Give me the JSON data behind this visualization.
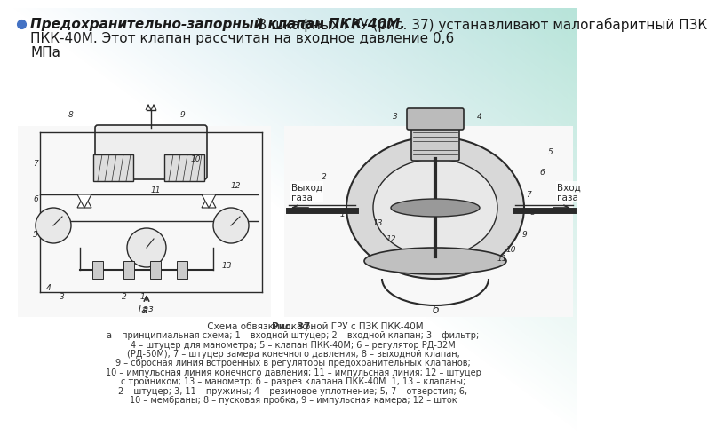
{
  "title_bold_italic": "Предохранительно-запорный клапан ПКК-40М.",
  "title_rest_line1": " В шкафных ГРУ (рис. 37) устанавливают малогабаритный ПЗК",
  "title_line2": "ПКК-40М. Этот клапан рассчитан на входное давление 0,6",
  "title_line3": "МПа",
  "cap1_bold": "Рис. 37.",
  "cap1_normal": " Схема обвязки шкафной ГРУ с ПЗК ПКК-40М",
  "cap2": "а – принципиальная схема; 1 – входной штуцер; 2 – входной клапан; 3 – фильтр;",
  "cap3": "4 – штуцер для манометра; 5 – клапан ПКК-40М; 6 – регулятор РД-32М",
  "cap4": "(РД-50М); 7 – штуцер замера конечного давления; 8 – выходной клапан;",
  "cap5": "9 – сбросная линия встроенных в регуляторы предохранительных клапанов;",
  "cap6": "10 – импульсная линия конечного давления; 11 – импульсная линия; 12 – штуцер",
  "cap7": "с тройником; 13 – манометр; б – разрез клапана ПКК-40М. 1, 13 – клапаны;",
  "cap8": "2 – штуцер; 3, 11 – пружины; 4 – резиновое уплотнение; 5, 7 – отверстия; 6,",
  "cap9": "10 – мембраны; 8 – пусковая пробка, 9 – импульсная камера; 12 – шток",
  "vyhod_gaza": "Выход\nгаза",
  "vhod_gaza": "Вход\nгаза",
  "gaz_label": "Газ",
  "label_a": "а",
  "label_b": "б",
  "bg_color": "#f5f5f5",
  "header_grad_left": "#6ab0d8",
  "header_grad_right": "#7ecfbb",
  "text_dark": "#1a1a1a",
  "bullet_color": "#4472c4",
  "caption_color": "#333333"
}
